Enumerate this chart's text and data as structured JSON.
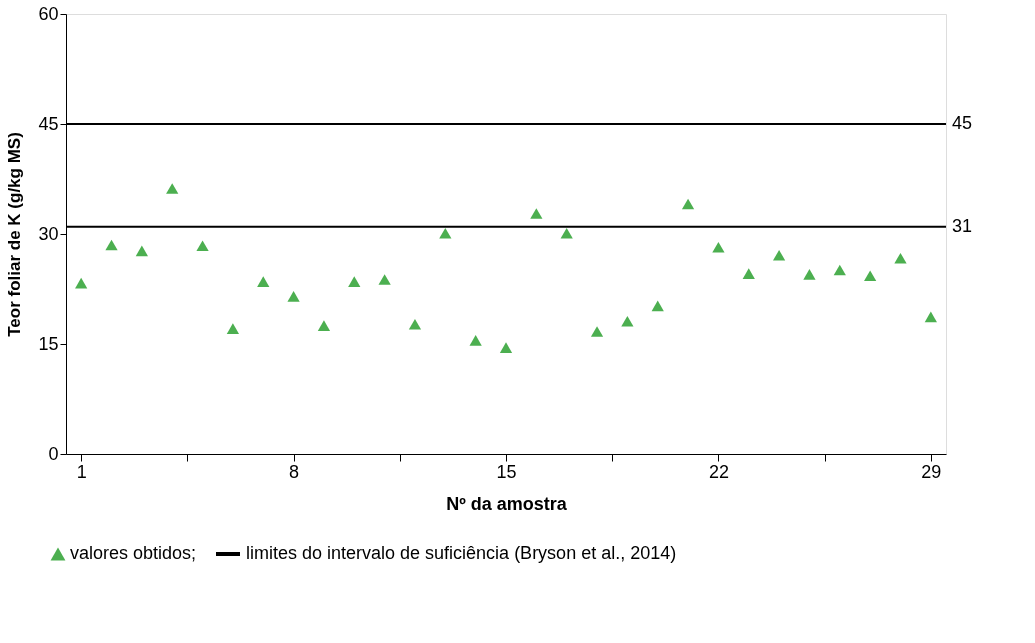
{
  "chart_data": {
    "type": "scatter",
    "xlabel": "Nº da amostra",
    "ylabel": "Teor foliar de K  (g/kg MS)",
    "x": [
      1,
      2,
      3,
      4,
      5,
      6,
      7,
      8,
      9,
      10,
      11,
      12,
      13,
      14,
      15,
      16,
      17,
      18,
      19,
      20,
      21,
      22,
      23,
      24,
      25,
      26,
      27,
      28,
      29
    ],
    "series": [
      {
        "name": "valores obtidos;",
        "color": "#4caf50",
        "values": [
          23.3,
          28.5,
          27.7,
          36.2,
          28.4,
          17.1,
          23.5,
          21.5,
          17.5,
          23.5,
          23.8,
          17.7,
          30.1,
          15.5,
          14.5,
          32.8,
          30.1,
          16.7,
          18.1,
          20.2,
          34.1,
          28.2,
          24.6,
          27.1,
          24.5,
          25.1,
          24.3,
          26.7,
          18.7
        ]
      }
    ],
    "xlim": [
      0.5,
      29.5
    ],
    "xticks": [
      1,
      {
        "value": 4.5,
        "label": null
      },
      8,
      {
        "value": 11.5,
        "label": null
      },
      15,
      {
        "value": 18.5,
        "label": null
      },
      22,
      {
        "value": 25.5,
        "label": null
      },
      29
    ],
    "ylim": [
      0,
      60
    ],
    "yticks": [
      0,
      15,
      30,
      45,
      60
    ],
    "ref_lines": [
      {
        "axis": "y",
        "value": 45,
        "label": "45",
        "color": "#000000",
        "line_style": "solid"
      },
      {
        "axis": "y",
        "value": 31,
        "label": "31",
        "color": "#000000",
        "line_style": "solid"
      }
    ],
    "annotations": [
      "limites do intervalo de suficiência (Bryson et al., 2014)"
    ],
    "marker": "triangle",
    "grid": false,
    "legend": "bottom"
  }
}
